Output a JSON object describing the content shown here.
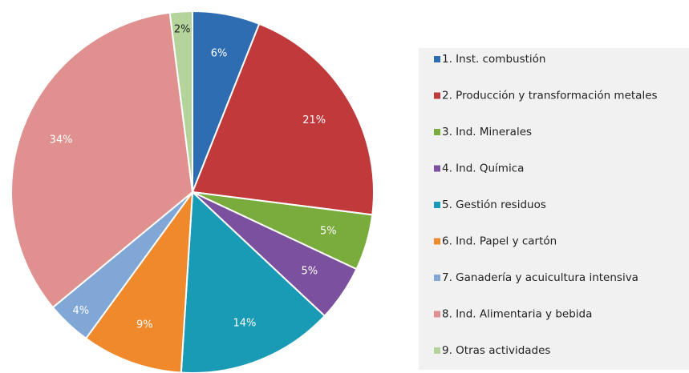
{
  "chart_data": {
    "type": "pie",
    "categories": [
      "1. Inst. combustión",
      "2. Producción y transformación metales",
      "3. Ind. Minerales",
      "4. Ind. Química",
      "5. Gestión residuos",
      "6. Ind. Papel y cartón",
      "7. Ganadería y acuicultura intensiva",
      "8. Ind. Alimentaria y bebida",
      "9. Otras actividades"
    ],
    "values": [
      6,
      21,
      5,
      5,
      14,
      9,
      4,
      34,
      2
    ],
    "value_labels": [
      "6%",
      "21%",
      "5%",
      "5%",
      "14%",
      "9%",
      "4%",
      "34%",
      "2%"
    ],
    "colors": [
      "#2f6db3",
      "#c03a3c",
      "#7aab3d",
      "#7b509e",
      "#1a9bb5",
      "#f0892c",
      "#80a7d6",
      "#e0918f",
      "#b4d49b"
    ],
    "legend": "right"
  }
}
